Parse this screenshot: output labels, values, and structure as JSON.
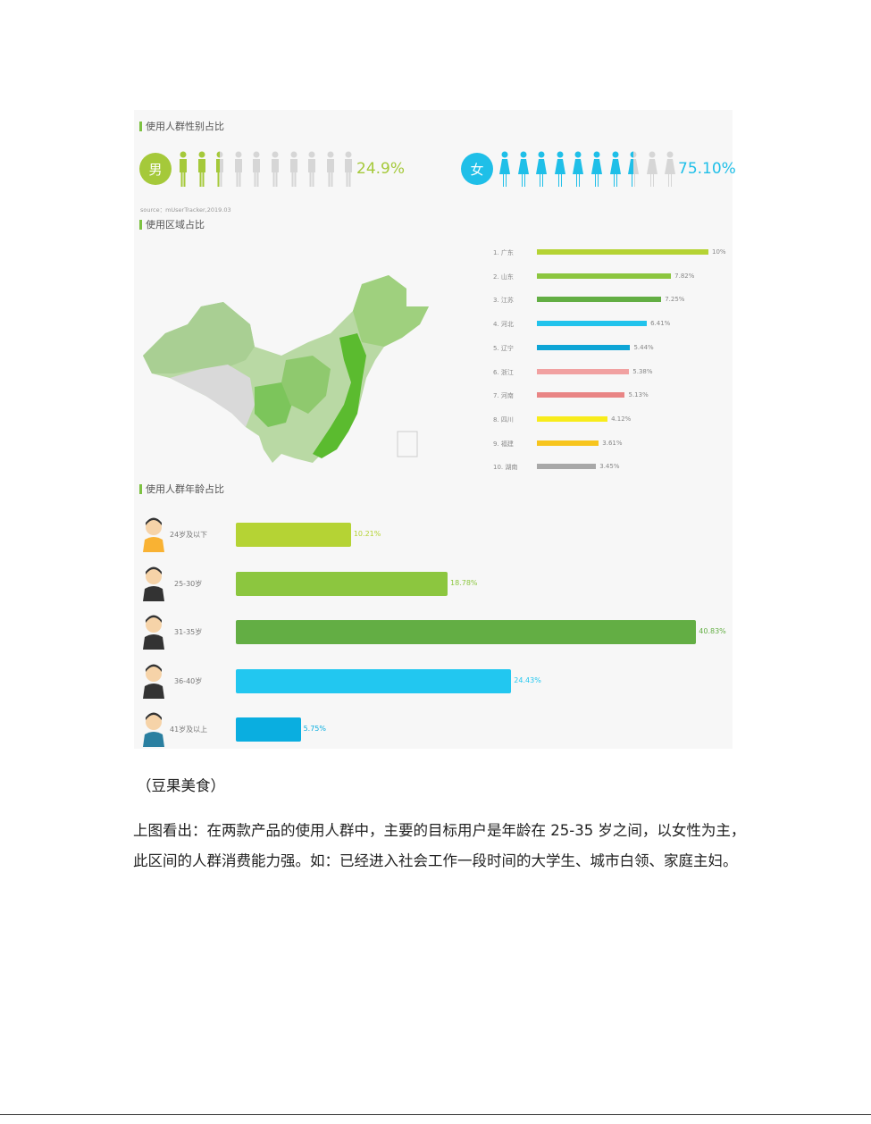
{
  "gender": {
    "title": "使用人群性别占比",
    "male": {
      "label": "男",
      "percent_text": "24.9%",
      "value": 24.9,
      "color": "#a5c93a"
    },
    "female": {
      "label": "女",
      "percent_text": "75.10%",
      "value": 75.1,
      "color": "#1fbfe8"
    },
    "source": "source：mUserTracker,2019.03"
  },
  "region": {
    "title": "使用区域占比",
    "items": [
      {
        "rank": "1.",
        "name": "广东",
        "value": 10,
        "label": "10%",
        "color": "#b5d334"
      },
      {
        "rank": "2.",
        "name": "山东",
        "value": 7.82,
        "label": "7.82%",
        "color": "#8cc63f"
      },
      {
        "rank": "3.",
        "name": "江苏",
        "value": 7.25,
        "label": "7.25%",
        "color": "#63ae44"
      },
      {
        "rank": "4.",
        "name": "河北",
        "value": 6.41,
        "label": "6.41%",
        "color": "#22c3ec"
      },
      {
        "rank": "5.",
        "name": "辽宁",
        "value": 5.44,
        "label": "5.44%",
        "color": "#0ea5d6"
      },
      {
        "rank": "6.",
        "name": "浙江",
        "value": 5.38,
        "label": "5.38%",
        "color": "#f1a1a1"
      },
      {
        "rank": "7.",
        "name": "河南",
        "value": 5.13,
        "label": "5.13%",
        "color": "#e98585"
      },
      {
        "rank": "8.",
        "name": "四川",
        "value": 4.12,
        "label": "4.12%",
        "color": "#f8ec1c"
      },
      {
        "rank": "9.",
        "name": "福建",
        "value": 3.61,
        "label": "3.61%",
        "color": "#f7c51e"
      },
      {
        "rank": "10.",
        "name": "湖南",
        "value": 3.45,
        "label": "3.45%",
        "color": "#a8a8a8"
      }
    ]
  },
  "age": {
    "title": "使用人群年龄占比",
    "items": [
      {
        "name": "24岁及以下",
        "value": 10.21,
        "label": "10.21%",
        "color": "#b5d334",
        "shirt": "#f9b233"
      },
      {
        "name": "25-30岁",
        "value": 18.78,
        "label": "18.78%",
        "color": "#8cc63f",
        "shirt": "#333333"
      },
      {
        "name": "31-35岁",
        "value": 40.83,
        "label": "40.83%",
        "color": "#63ae44",
        "shirt": "#333333"
      },
      {
        "name": "36-40岁",
        "value": 24.43,
        "label": "24.43%",
        "color": "#22c7f0",
        "shirt": "#333333"
      },
      {
        "name": "41岁及以上",
        "value": 5.75,
        "label": "5.75%",
        "color": "#0aaee0",
        "shirt": "#2a7fa0"
      }
    ]
  },
  "chart_data": [
    {
      "type": "bar",
      "title": "使用区域占比",
      "categories": [
        "广东",
        "山东",
        "江苏",
        "河北",
        "辽宁",
        "浙江",
        "河南",
        "四川",
        "福建",
        "湖南"
      ],
      "values": [
        10,
        7.82,
        7.25,
        6.41,
        5.44,
        5.38,
        5.13,
        4.12,
        3.61,
        3.45
      ]
    },
    {
      "type": "bar",
      "title": "使用人群年龄占比",
      "categories": [
        "24岁及以下",
        "25-30岁",
        "31-35岁",
        "36-40岁",
        "41岁及以上"
      ],
      "values": [
        10.21,
        18.78,
        40.83,
        24.43,
        5.75
      ]
    }
  ],
  "caption": "（豆果美食）",
  "paragraph": "上图看出：在两款产品的使用人群中，主要的目标用户是年龄在 25-35 岁之间，以女性为主，此区间的人群消费能力强。如：已经进入社会工作一段时间的大学生、城市白领、家庭主妇。"
}
